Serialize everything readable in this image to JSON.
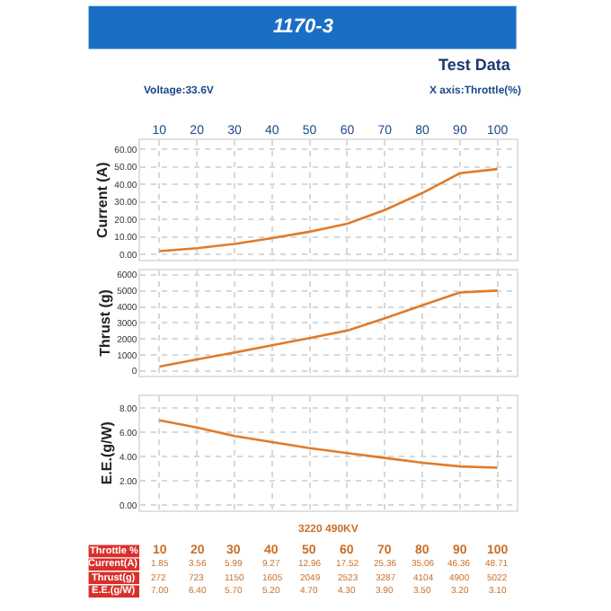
{
  "chart_data": [
    {
      "type": "line",
      "title": "1170-3",
      "subtitle": "Test Data",
      "annotations": [
        "Voltage:33.6V",
        "X axis:Throttle(%)"
      ],
      "ylabel": "Current (A)",
      "categories": [
        "10",
        "20",
        "30",
        "40",
        "50",
        "60",
        "70",
        "80",
        "90",
        "100"
      ],
      "series": [
        {
          "name": "Current(A)",
          "color": "#e07b2a",
          "values": [
            1.85,
            3.56,
            5.99,
            9.27,
            12.96,
            17.52,
            25.36,
            35.06,
            46.36,
            48.71
          ],
          "value_labels": [
            "1.85",
            "3.56",
            "5.99",
            "9.27",
            "12.96",
            "17.52",
            "25.36",
            "35.06",
            "46.36",
            "48.71"
          ]
        }
      ],
      "ylim": [
        -3,
        65
      ],
      "yticks": [
        {
          "value": 0,
          "label": "0.00"
        },
        {
          "value": 10,
          "label": "10.00"
        },
        {
          "value": 20,
          "label": "20.00"
        },
        {
          "value": 30,
          "label": "30.00"
        },
        {
          "value": 40,
          "label": "40.00"
        },
        {
          "value": 50,
          "label": "50.00"
        },
        {
          "value": 60,
          "label": "60.00"
        }
      ],
      "grid": true,
      "marker": "none",
      "line_style": "solid"
    },
    {
      "type": "line",
      "ylabel": "Thrust (g)",
      "categories": [
        "10",
        "20",
        "30",
        "40",
        "50",
        "60",
        "70",
        "80",
        "90",
        "100"
      ],
      "series": [
        {
          "name": "Thrust(g)",
          "color": "#e07b2a",
          "values": [
            272,
            723,
            1150,
            1605,
            2049,
            2523,
            3287,
            4104,
            4900,
            5022
          ],
          "value_labels": [
            "272",
            "723",
            "1150",
            "1605",
            "2049",
            "2523",
            "3287",
            "4104",
            "4900",
            "5022"
          ]
        }
      ],
      "ylim": [
        -300,
        6300
      ],
      "yticks": [
        0,
        1000,
        2000,
        3000,
        4000,
        5000,
        6000
      ],
      "grid": true,
      "marker": "none",
      "line_style": "solid",
      "tick_labels": "y"
    },
    {
      "type": "line",
      "ylabel": "E.E.(g/W)",
      "annotations": [
        "3220 490KV"
      ],
      "xlabel": "Throttle %",
      "categories": [
        "10",
        "20",
        "30",
        "40",
        "50",
        "60",
        "70",
        "80",
        "90",
        "100"
      ],
      "series": [
        {
          "name": "E.E.(g/W)",
          "color": "#e07b2a",
          "values": [
            7.0,
            6.4,
            5.7,
            5.2,
            4.7,
            4.3,
            3.9,
            3.5,
            3.2,
            3.1
          ],
          "value_labels": [
            "7.00",
            "6.40",
            "5.70",
            "5.20",
            "4.70",
            "4.30",
            "3.90",
            "3.50",
            "3.20",
            "3.10"
          ]
        }
      ],
      "ylim": [
        -0.4,
        9
      ],
      "yticks": [
        {
          "value": 0,
          "label": "0.00"
        },
        {
          "value": 2,
          "label": "2.00"
        },
        {
          "value": 4,
          "label": "4.00"
        },
        {
          "value": 6,
          "label": "6.00"
        },
        {
          "value": 8,
          "label": "8.00"
        }
      ],
      "grid": true,
      "marker": "none",
      "line_style": "solid",
      "tick_labels": "y"
    }
  ]
}
